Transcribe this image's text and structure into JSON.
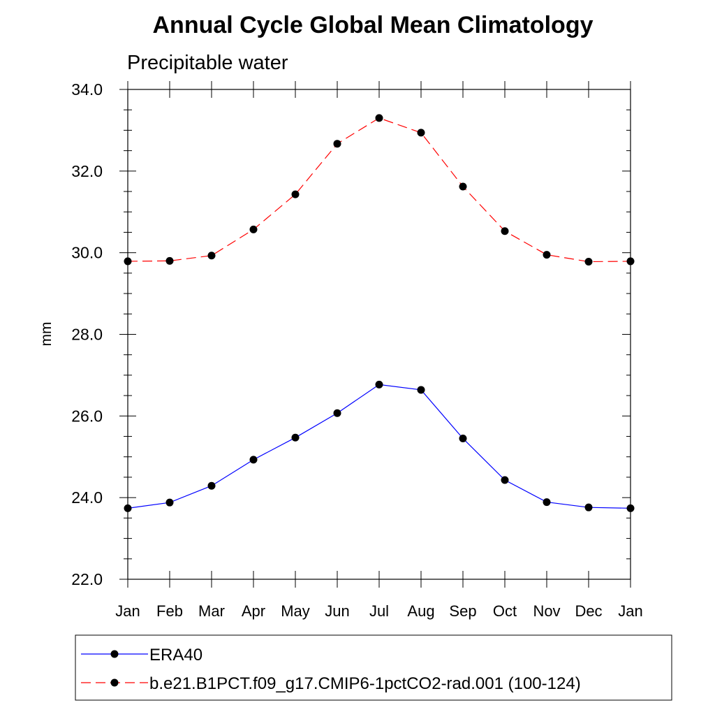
{
  "chart_data": {
    "type": "line",
    "title": "Annual Cycle Global Mean Climatology",
    "subtitle": "Precipitable water",
    "xlabel": "",
    "ylabel": "mm",
    "categories": [
      "Jan",
      "Feb",
      "Mar",
      "Apr",
      "May",
      "Jun",
      "Jul",
      "Aug",
      "Sep",
      "Oct",
      "Nov",
      "Dec",
      "Jan"
    ],
    "ylim": [
      22.0,
      34.0
    ],
    "yticks": [
      "22.0",
      "24.0",
      "26.0",
      "28.0",
      "30.0",
      "32.0",
      "34.0"
    ],
    "grid": false,
    "legend_position": "bottom",
    "series": [
      {
        "name": "ERA40",
        "color": "#0000ff",
        "dash": "solid",
        "marker": "filled-circle",
        "values": [
          23.74,
          23.88,
          24.29,
          24.93,
          25.47,
          26.07,
          26.77,
          26.64,
          25.45,
          24.43,
          23.89,
          23.76,
          23.74
        ]
      },
      {
        "name": "b.e21.B1PCT.f09_g17.CMIP6-1pctCO2-rad.001 (100-124)",
        "color": "#ff0000",
        "dash": "dashed",
        "marker": "filled-circle",
        "values": [
          29.79,
          29.8,
          29.93,
          30.57,
          31.43,
          32.67,
          33.3,
          32.94,
          31.62,
          30.53,
          29.95,
          29.78,
          29.79
        ]
      }
    ]
  }
}
